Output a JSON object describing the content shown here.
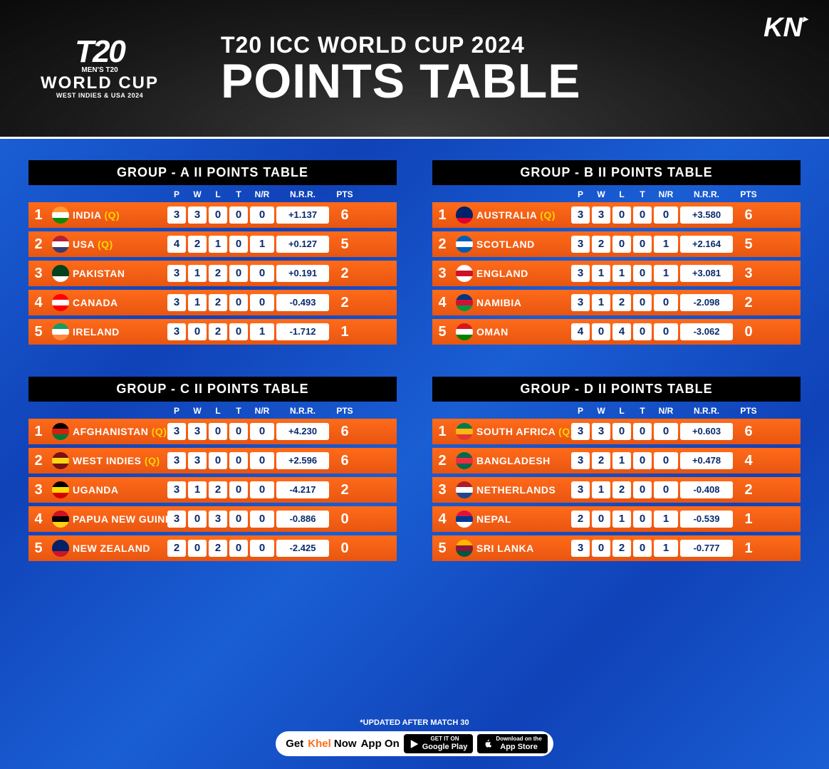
{
  "header": {
    "logo_t20": "T20",
    "logo_icc": "ICC",
    "logo_mens": "MEN'S T20",
    "logo_wc": "WORLD CUP",
    "logo_sub": "WEST INDIES & USA 2024",
    "title_top": "T20 ICC WORLD CUP 2024",
    "title_main": "POINTS TABLE",
    "kn_logo": "KN"
  },
  "columns": [
    "P",
    "W",
    "L",
    "T",
    "N/R",
    "N.R.R.",
    "PTS"
  ],
  "groups": [
    {
      "title": "GROUP - A  II  POINTS TABLE",
      "rows": [
        {
          "rank": "1",
          "team": "INDIA",
          "q": "(Q)",
          "flag": [
            "#ff9933",
            "#ffffff",
            "#138808"
          ],
          "p": "3",
          "w": "3",
          "l": "0",
          "t": "0",
          "nr": "0",
          "nrr": "+1.137",
          "pts": "6"
        },
        {
          "rank": "2",
          "team": "USA",
          "q": "(Q)",
          "flag": [
            "#b22234",
            "#ffffff",
            "#3c3b6e"
          ],
          "p": "4",
          "w": "2",
          "l": "1",
          "t": "0",
          "nr": "1",
          "nrr": "+0.127",
          "pts": "5"
        },
        {
          "rank": "3",
          "team": "PAKISTAN",
          "q": "",
          "flag": [
            "#01411c",
            "#01411c",
            "#ffffff"
          ],
          "p": "3",
          "w": "1",
          "l": "2",
          "t": "0",
          "nr": "0",
          "nrr": "+0.191",
          "pts": "2"
        },
        {
          "rank": "4",
          "team": "CANADA",
          "q": "",
          "flag": [
            "#ff0000",
            "#ffffff",
            "#ff0000"
          ],
          "p": "3",
          "w": "1",
          "l": "2",
          "t": "0",
          "nr": "0",
          "nrr": "-0.493",
          "pts": "2"
        },
        {
          "rank": "5",
          "team": "IRELAND",
          "q": "",
          "flag": [
            "#169b62",
            "#ffffff",
            "#ff883e"
          ],
          "p": "3",
          "w": "0",
          "l": "2",
          "t": "0",
          "nr": "1",
          "nrr": "-1.712",
          "pts": "1"
        }
      ]
    },
    {
      "title": "GROUP - B  II  POINTS TABLE",
      "rows": [
        {
          "rank": "1",
          "team": "AUSTRALIA",
          "q": "(Q)",
          "flag": [
            "#012169",
            "#012169",
            "#e4002b"
          ],
          "p": "3",
          "w": "3",
          "l": "0",
          "t": "0",
          "nr": "0",
          "nrr": "+3.580",
          "pts": "6"
        },
        {
          "rank": "2",
          "team": "SCOTLAND",
          "q": "",
          "flag": [
            "#005eb8",
            "#ffffff",
            "#005eb8"
          ],
          "p": "3",
          "w": "2",
          "l": "0",
          "t": "0",
          "nr": "1",
          "nrr": "+2.164",
          "pts": "5"
        },
        {
          "rank": "3",
          "team": "ENGLAND",
          "q": "",
          "flag": [
            "#ffffff",
            "#ce1124",
            "#ffffff"
          ],
          "p": "3",
          "w": "1",
          "l": "1",
          "t": "0",
          "nr": "1",
          "nrr": "+3.081",
          "pts": "3"
        },
        {
          "rank": "4",
          "team": "NAMIBIA",
          "q": "",
          "flag": [
            "#003580",
            "#d21034",
            "#009543"
          ],
          "p": "3",
          "w": "1",
          "l": "2",
          "t": "0",
          "nr": "0",
          "nrr": "-2.098",
          "pts": "2"
        },
        {
          "rank": "5",
          "team": "OMAN",
          "q": "",
          "flag": [
            "#db161b",
            "#ffffff",
            "#008000"
          ],
          "p": "4",
          "w": "0",
          "l": "4",
          "t": "0",
          "nr": "0",
          "nrr": "-3.062",
          "pts": "0"
        }
      ]
    },
    {
      "title": "GROUP - C  II  POINTS TABLE",
      "rows": [
        {
          "rank": "1",
          "team": "AFGHANISTAN",
          "q": "(Q)",
          "flag": [
            "#000000",
            "#d32011",
            "#007a36"
          ],
          "p": "3",
          "w": "3",
          "l": "0",
          "t": "0",
          "nr": "0",
          "nrr": "+4.230",
          "pts": "6"
        },
        {
          "rank": "2",
          "team": "WEST INDIES",
          "q": "(Q)",
          "flag": [
            "#7b1113",
            "#f9d616",
            "#7b1113"
          ],
          "p": "3",
          "w": "3",
          "l": "0",
          "t": "0",
          "nr": "0",
          "nrr": "+2.596",
          "pts": "6"
        },
        {
          "rank": "3",
          "team": "UGANDA",
          "q": "",
          "flag": [
            "#000000",
            "#fcdc04",
            "#d90000"
          ],
          "p": "3",
          "w": "1",
          "l": "2",
          "t": "0",
          "nr": "0",
          "nrr": "-4.217",
          "pts": "2"
        },
        {
          "rank": "4",
          "team": "PAPUA NEW GUINEA",
          "q": "",
          "flag": [
            "#ce1126",
            "#000000",
            "#fcd116"
          ],
          "p": "3",
          "w": "0",
          "l": "3",
          "t": "0",
          "nr": "0",
          "nrr": "-0.886",
          "pts": "0"
        },
        {
          "rank": "5",
          "team": "NEW ZEALAND",
          "q": "",
          "flag": [
            "#012169",
            "#012169",
            "#cc142b"
          ],
          "p": "2",
          "w": "0",
          "l": "2",
          "t": "0",
          "nr": "0",
          "nrr": "-2.425",
          "pts": "0"
        }
      ]
    },
    {
      "title": "GROUP - D  II  POINTS TABLE",
      "rows": [
        {
          "rank": "1",
          "team": "SOUTH AFRICA",
          "q": "(Q)",
          "flag": [
            "#007a4d",
            "#ffb612",
            "#de3831"
          ],
          "p": "3",
          "w": "3",
          "l": "0",
          "t": "0",
          "nr": "0",
          "nrr": "+0.603",
          "pts": "6"
        },
        {
          "rank": "2",
          "team": "BANGLADESH",
          "q": "",
          "flag": [
            "#006a4e",
            "#f42a41",
            "#006a4e"
          ],
          "p": "3",
          "w": "2",
          "l": "1",
          "t": "0",
          "nr": "0",
          "nrr": "+0.478",
          "pts": "4"
        },
        {
          "rank": "3",
          "team": "NETHERLANDS",
          "q": "",
          "flag": [
            "#ae1c28",
            "#ffffff",
            "#21468b"
          ],
          "p": "3",
          "w": "1",
          "l": "2",
          "t": "0",
          "nr": "0",
          "nrr": "-0.408",
          "pts": "2"
        },
        {
          "rank": "4",
          "team": "NEPAL",
          "q": "",
          "flag": [
            "#dc143c",
            "#003893",
            "#ffffff"
          ],
          "p": "2",
          "w": "0",
          "l": "1",
          "t": "0",
          "nr": "1",
          "nrr": "-0.539",
          "pts": "1"
        },
        {
          "rank": "5",
          "team": "SRI LANKA",
          "q": "",
          "flag": [
            "#ffb700",
            "#8d153a",
            "#005641"
          ],
          "p": "3",
          "w": "0",
          "l": "2",
          "t": "0",
          "nr": "1",
          "nrr": "-0.777",
          "pts": "1"
        }
      ]
    }
  ],
  "footer": {
    "note": "*UPDATED AFTER MATCH 30",
    "get": "Get ",
    "khel": "Khel",
    "now": " Now",
    "appon": " App On",
    "gp_top": "GET IT ON",
    "gp_bot": "Google Play",
    "as_top": "Download on the",
    "as_bot": "App Store"
  },
  "colors": {
    "row_bg": "#ff6b1a",
    "header_bg": "#000000",
    "body_bg": "#1a4fc4",
    "stat_bg": "#ffffff",
    "stat_text": "#0a2a6b",
    "q_color": "#ffd400"
  }
}
